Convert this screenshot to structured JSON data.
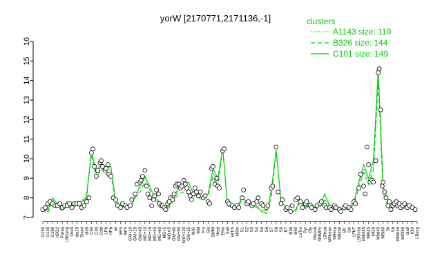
{
  "chart_data": {
    "type": "line",
    "title": "yorW [2170771,2171136,-1]",
    "xlabel": "",
    "ylabel": "",
    "ylim": [
      7,
      16
    ],
    "yticks": [
      7,
      8,
      9,
      10,
      11,
      12,
      13,
      14,
      15,
      16
    ],
    "grid": false,
    "legend_placement": "top-right",
    "legend_title": "clusters",
    "colors": {
      "series": "#00cc00",
      "points": "#000000",
      "axis": "#000000"
    },
    "x_tick_labels": [
      "G150",
      "G135",
      "G180",
      "H2O2",
      "Paraq",
      "LBGexp",
      "Oxctl",
      "dia15",
      "Diami",
      "dia5",
      "C90",
      "C30",
      "Cold",
      "LPh",
      "HPh",
      "nit",
      "aero",
      "ferm",
      "GM+10",
      "GM+15",
      "GM+45",
      "MG+10",
      "MG+15",
      "MG+45",
      "MG+60",
      "MG+5",
      "MG+t5",
      "GM+60",
      "GM+90",
      "GM+120",
      "GM+25",
      "M/G",
      "Mal",
      "Fru",
      "Glu",
      "BMM",
      "Heat",
      "Etha",
      "Salt",
      "HiTm",
      "HiOs",
      "S1",
      "S2",
      "S3",
      "S4",
      "S5",
      "S6",
      "S7",
      "S8",
      "S9",
      "BT",
      "B36",
      "B60",
      "LoTm",
      "Pyr",
      "Gly",
      "Glucon",
      "SMMPy",
      "LBtran",
      "M9trans",
      "M9exp",
      "M9stat",
      "BC",
      "Sw",
      "LPhT",
      "LBGstat",
      "M40t45",
      "M9t45",
      "MG5",
      "M0d40",
      "M0t60",
      "BI",
      "Sb",
      "Mt0d45",
      "Mt0t50",
      "dia0",
      "t0t0",
      "LBexp"
    ],
    "series": [
      {
        "name": "A1143 size: 119",
        "style": "dotted",
        "values": [
          7.5,
          7.3,
          7.9,
          7.7,
          7.4,
          7.7,
          7.5,
          7.8,
          7.8,
          8.3,
          10.3,
          9.2,
          9.6,
          9.3,
          9.5,
          7.8,
          7.7,
          7.6,
          7.6,
          8.2,
          8.5,
          9.0,
          8.6,
          8.0,
          7.8,
          7.6,
          7.6,
          8.0,
          8.4,
          8.5,
          8.6,
          8.3,
          8.1,
          8.0,
          8.2,
          9.3,
          8.8,
          10.6,
          7.7,
          7.6,
          7.6,
          8.0,
          7.8,
          7.7,
          7.6,
          7.6,
          7.4,
          8.2,
          10.5,
          7.9,
          7.5,
          7.3,
          7.4,
          7.9,
          7.5,
          7.8,
          7.5,
          7.6,
          7.8,
          7.7,
          7.5,
          7.6,
          7.5,
          7.5,
          7.8,
          8.7,
          9.5,
          8.9,
          9.6,
          14.3,
          8.4,
          7.7,
          7.5,
          7.6,
          7.5,
          7.7,
          7.6,
          7.4
        ]
      },
      {
        "name": "B326 size: 144",
        "style": "dashed",
        "values": [
          7.4,
          7.2,
          7.8,
          7.6,
          7.3,
          7.6,
          7.4,
          7.7,
          7.7,
          8.1,
          10.2,
          9.0,
          9.5,
          9.2,
          9.3,
          7.7,
          7.6,
          7.5,
          7.5,
          8.0,
          8.3,
          8.8,
          8.4,
          7.9,
          7.7,
          7.5,
          7.5,
          7.9,
          8.2,
          8.3,
          8.4,
          8.1,
          8.0,
          7.9,
          8.1,
          9.1,
          8.6,
          10.5,
          7.6,
          7.5,
          7.5,
          7.9,
          7.7,
          7.6,
          7.5,
          7.4,
          7.3,
          8.0,
          10.4,
          7.8,
          7.4,
          7.2,
          7.3,
          7.8,
          7.4,
          7.7,
          7.4,
          7.5,
          7.9,
          7.6,
          7.4,
          7.5,
          7.4,
          7.4,
          7.7,
          8.5,
          9.3,
          8.7,
          9.4,
          14.0,
          8.2,
          7.6,
          7.4,
          7.5,
          7.4,
          7.6,
          7.5,
          7.3
        ]
      },
      {
        "name": "C101 size: 149",
        "style": "solid",
        "values": [
          7.3,
          7.4,
          8.0,
          7.7,
          7.5,
          7.8,
          7.6,
          7.8,
          7.8,
          8.0,
          10.4,
          9.3,
          9.8,
          9.5,
          9.6,
          7.8,
          7.6,
          7.5,
          7.5,
          8.1,
          8.6,
          9.1,
          8.6,
          8.0,
          7.8,
          7.5,
          7.6,
          8.0,
          8.6,
          8.7,
          8.8,
          8.2,
          8.1,
          8.0,
          8.2,
          9.5,
          9.0,
          10.5,
          7.6,
          7.5,
          7.5,
          8.0,
          7.8,
          7.5,
          7.6,
          7.3,
          7.2,
          8.4,
          10.4,
          7.8,
          7.5,
          7.2,
          7.4,
          7.9,
          7.5,
          7.7,
          7.5,
          7.6,
          8.2,
          7.6,
          7.4,
          7.5,
          7.4,
          7.5,
          7.8,
          8.8,
          9.7,
          9.0,
          9.9,
          14.6,
          8.6,
          7.8,
          7.7,
          7.8,
          7.6,
          7.7,
          7.6,
          7.4
        ]
      }
    ],
    "points": [
      [
        0,
        7.4
      ],
      [
        0.5,
        7.5
      ],
      [
        1,
        7.7
      ],
      [
        1.5,
        7.8
      ],
      [
        2,
        7.7
      ],
      [
        2.5,
        7.6
      ],
      [
        3,
        7.6
      ],
      [
        3.5,
        7.7
      ],
      [
        4,
        7.5
      ],
      [
        4.5,
        7.6
      ],
      [
        5,
        7.6
      ],
      [
        5.5,
        7.7
      ],
      [
        6,
        7.5
      ],
      [
        6.5,
        7.7
      ],
      [
        7,
        7.7
      ],
      [
        7.5,
        7.7
      ],
      [
        8,
        7.5
      ],
      [
        8.5,
        7.6
      ],
      [
        9,
        7.8
      ],
      [
        9.5,
        8.0
      ],
      [
        10,
        10.3
      ],
      [
        10.3,
        10.5
      ],
      [
        10.6,
        9.6
      ],
      [
        11,
        9.1
      ],
      [
        11.3,
        9.4
      ],
      [
        11.8,
        9.8
      ],
      [
        12,
        9.9
      ],
      [
        12.3,
        9.6
      ],
      [
        12.8,
        9.4
      ],
      [
        13,
        9.5
      ],
      [
        13.4,
        9.7
      ],
      [
        13.6,
        9.2
      ],
      [
        14,
        9.1
      ],
      [
        14.5,
        8.0
      ],
      [
        15,
        7.9
      ],
      [
        15.4,
        7.6
      ],
      [
        16,
        7.5
      ],
      [
        16.4,
        7.7
      ],
      [
        17,
        7.6
      ],
      [
        17.3,
        7.5
      ],
      [
        18,
        7.6
      ],
      [
        18.3,
        7.9
      ],
      [
        19,
        8.2
      ],
      [
        19.4,
        8.7
      ],
      [
        20,
        8.8
      ],
      [
        20.2,
        8.9
      ],
      [
        20.5,
        9.1
      ],
      [
        21,
        9.4
      ],
      [
        21.3,
        8.6
      ],
      [
        21.6,
        8.2
      ],
      [
        22,
        8.0
      ],
      [
        22.4,
        7.6
      ],
      [
        22.8,
        7.9
      ],
      [
        23,
        8.1
      ],
      [
        23.4,
        8.4
      ],
      [
        23.8,
        8.2
      ],
      [
        24,
        7.7
      ],
      [
        24.3,
        7.6
      ],
      [
        24.6,
        7.6
      ],
      [
        25,
        7.5
      ],
      [
        25.3,
        7.4
      ],
      [
        25.7,
        7.7
      ],
      [
        26,
        7.8
      ],
      [
        26.3,
        8.0
      ],
      [
        26.7,
        7.9
      ],
      [
        27,
        8.2
      ],
      [
        27.3,
        8.6
      ],
      [
        27.6,
        8.7
      ],
      [
        28,
        8.7
      ],
      [
        28.3,
        8.5
      ],
      [
        28.6,
        8.6
      ],
      [
        29,
        8.9
      ],
      [
        29.3,
        8.7
      ],
      [
        29.6,
        8.5
      ],
      [
        30,
        8.3
      ],
      [
        30.3,
        8.1
      ],
      [
        30.6,
        7.9
      ],
      [
        31,
        8.2
      ],
      [
        31.3,
        8.5
      ],
      [
        31.6,
        8.3
      ],
      [
        32,
        8.1
      ],
      [
        32.4,
        8.3
      ],
      [
        33,
        8.0
      ],
      [
        33.4,
        8.1
      ],
      [
        34,
        7.8
      ],
      [
        34.3,
        7.7
      ],
      [
        34.7,
        9.5
      ],
      [
        35,
        9.6
      ],
      [
        35.4,
        8.7
      ],
      [
        35.8,
        9.0
      ],
      [
        36,
        8.6
      ],
      [
        36.3,
        8.5
      ],
      [
        37,
        10.4
      ],
      [
        37.3,
        10.5
      ],
      [
        38,
        7.8
      ],
      [
        38.3,
        7.7
      ],
      [
        39,
        7.6
      ],
      [
        39.4,
        7.5
      ],
      [
        40,
        7.6
      ],
      [
        40.3,
        7.5
      ],
      [
        41,
        8.0
      ],
      [
        41.3,
        8.4
      ],
      [
        42,
        7.7
      ],
      [
        42.3,
        7.8
      ],
      [
        43,
        7.6
      ],
      [
        43.3,
        7.7
      ],
      [
        44,
        7.8
      ],
      [
        44.3,
        8.0
      ],
      [
        45,
        7.7
      ],
      [
        45.3,
        7.6
      ],
      [
        46,
        7.5
      ],
      [
        46.3,
        7.6
      ],
      [
        47,
        8.5
      ],
      [
        47.3,
        8.6
      ],
      [
        48,
        10.6
      ],
      [
        48.4,
        8.3
      ],
      [
        49,
        7.7
      ],
      [
        49.3,
        7.9
      ],
      [
        50,
        7.4
      ],
      [
        50.3,
        7.5
      ],
      [
        51,
        7.3
      ],
      [
        51.3,
        7.6
      ],
      [
        52,
        7.9
      ],
      [
        52.4,
        8.0
      ],
      [
        53,
        7.8
      ],
      [
        53.4,
        7.5
      ],
      [
        54,
        7.7
      ],
      [
        54.3,
        7.8
      ],
      [
        55,
        7.6
      ],
      [
        55.3,
        7.5
      ],
      [
        56,
        7.4
      ],
      [
        56.4,
        7.6
      ],
      [
        57,
        7.7
      ],
      [
        57.3,
        7.8
      ],
      [
        58,
        7.6
      ],
      [
        58.3,
        7.5
      ],
      [
        59,
        7.5
      ],
      [
        59.3,
        7.4
      ],
      [
        60,
        7.6
      ],
      [
        60.3,
        7.5
      ],
      [
        61,
        7.4
      ],
      [
        61.3,
        7.3
      ],
      [
        62,
        7.5
      ],
      [
        62.3,
        7.6
      ],
      [
        63,
        7.5
      ],
      [
        63.4,
        7.4
      ],
      [
        64,
        7.8
      ],
      [
        64.3,
        7.7
      ],
      [
        65,
        8.5
      ],
      [
        65.4,
        9.2
      ],
      [
        66,
        8.6
      ],
      [
        66.3,
        8.2
      ],
      [
        66.7,
        10.6
      ],
      [
        67,
        9.7
      ],
      [
        67.3,
        8.8
      ],
      [
        67.7,
        8.9
      ],
      [
        68,
        8.8
      ],
      [
        68.5,
        9.9
      ],
      [
        69,
        14.4
      ],
      [
        69.2,
        14.6
      ],
      [
        69.5,
        12.5
      ],
      [
        69.8,
        8.6
      ],
      [
        70,
        8.8
      ],
      [
        70.3,
        8.3
      ],
      [
        70.6,
        8.0
      ],
      [
        71,
        7.6
      ],
      [
        71.3,
        7.8
      ],
      [
        71.6,
        7.4
      ],
      [
        72,
        7.6
      ],
      [
        72.3,
        7.7
      ],
      [
        72.7,
        7.8
      ],
      [
        73,
        7.6
      ],
      [
        73.3,
        7.7
      ],
      [
        73.6,
        7.5
      ],
      [
        74,
        7.6
      ],
      [
        74.4,
        7.7
      ],
      [
        75,
        7.5
      ],
      [
        75.4,
        7.6
      ],
      [
        76,
        7.5
      ],
      [
        76.6,
        7.4
      ]
    ]
  }
}
